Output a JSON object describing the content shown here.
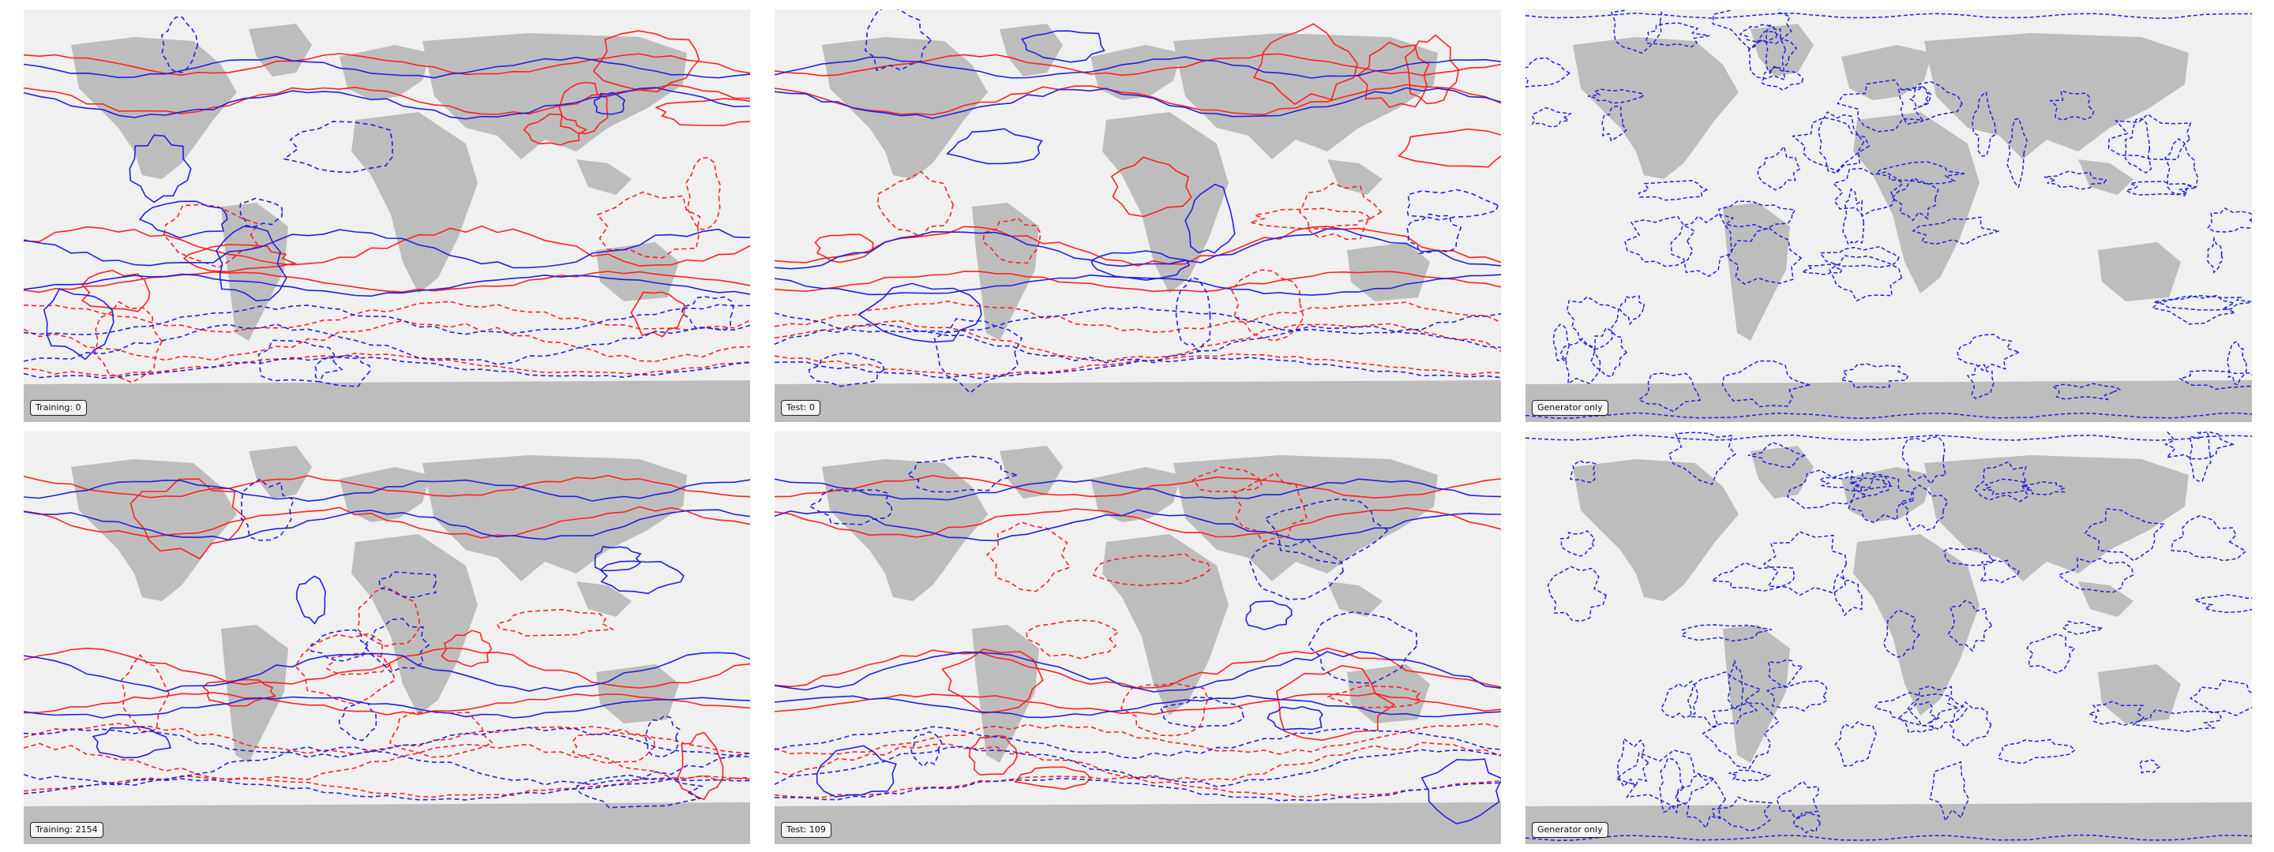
{
  "figure": {
    "colors": {
      "ocean": "#f0f0f0",
      "land": "#bdbdbd",
      "contour_a": "#ff2020",
      "contour_b": "#2020e0"
    },
    "panels": [
      {
        "id": "training-0",
        "label": "Training: 0",
        "kind": "comparison"
      },
      {
        "id": "test-0",
        "label": "Test: 0",
        "kind": "comparison"
      },
      {
        "id": "generator-only-top",
        "label": "Generator only",
        "kind": "generator"
      },
      {
        "id": "training-2154",
        "label": "Training: 2154",
        "kind": "comparison"
      },
      {
        "id": "test-109",
        "label": "Test: 109",
        "kind": "comparison"
      },
      {
        "id": "generator-only-bottom",
        "label": "Generator only",
        "kind": "generator"
      }
    ]
  }
}
